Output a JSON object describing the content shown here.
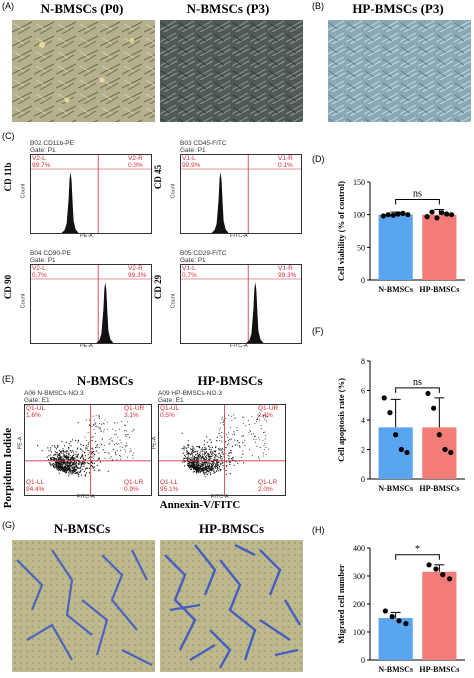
{
  "panels": {
    "A": {
      "label": "(A)",
      "images": [
        {
          "title": "N-BMSCs (P0)"
        },
        {
          "title": "N-BMSCs (P3)"
        }
      ]
    },
    "B": {
      "label": "(B)",
      "images": [
        {
          "title": "HP-BMSCs (P3)"
        }
      ]
    },
    "C": {
      "label": "(C)",
      "plots": [
        {
          "header": "B02 CD11b-PE",
          "gate": "Gate: P1",
          "ylabel": "CD 11b",
          "q_left": "V2-L",
          "q_left_val": "99.7%",
          "q_right": "V2-R",
          "q_right_val": "0.3%",
          "xaxis": "PE-A",
          "yaxis": "Count"
        },
        {
          "header": "B03 CD45-FITC",
          "gate": "Gate: P1",
          "ylabel": "CD 45",
          "q_left": "V1-L",
          "q_left_val": "99.9%",
          "q_right": "V1-R",
          "q_right_val": "0.1%",
          "xaxis": "FITC-A",
          "yaxis": "Count"
        },
        {
          "header": "B04 CD90-PE",
          "gate": "Gate: P1",
          "ylabel": "CD 90",
          "q_left": "V2-L",
          "q_left_val": "0.7%",
          "q_right": "V2-R",
          "q_right_val": "99.3%",
          "xaxis": "PE-A",
          "yaxis": "Count"
        },
        {
          "header": "B05 CD29-FITC",
          "gate": "Gate: P1",
          "ylabel": "CD 29",
          "q_left": "V1-L",
          "q_left_val": "0.7%",
          "q_right": "V1-R",
          "q_right_val": "99.3%",
          "xaxis": "FITC-A",
          "yaxis": "Count"
        }
      ]
    },
    "D": {
      "label": "(D)"
    },
    "E": {
      "label": "(E)",
      "titles": [
        "N-BMSCs",
        "HP-BMSCs"
      ],
      "ylabel": "Porpidum Iodide",
      "xlabel": "Annexin-V/FITC",
      "plots": [
        {
          "header": "A06 N-BMSCs-NO.3",
          "gate": "Gate: E1",
          "ul": "Q1-UL",
          "ul_val": "1.6%",
          "ur": "Q1-UR",
          "ur_val": "3.1%",
          "ll": "Q1-LL",
          "ll_val": "94.4%",
          "lr": "Q1-LR",
          "lr_val": "0.9%",
          "xaxis": "FITC-A",
          "yaxis": "PE-A"
        },
        {
          "header": "A09 HP-BMSCs-NO.3",
          "gate": "Gate: E1",
          "ul": "Q1-UL",
          "ul_val": "0.5%",
          "ur": "Q1-UR",
          "ur_val": "2.4%",
          "ll": "Q1-LL",
          "ll_val": "95.1%",
          "lr": "Q1-LR",
          "lr_val": "2.0%",
          "xaxis": "FITC-A",
          "yaxis": "PE-A"
        }
      ]
    },
    "F": {
      "label": "(F)"
    },
    "G": {
      "label": "(G)",
      "images": [
        {
          "title": "N-BMSCs"
        },
        {
          "title": "HP-BMSCs"
        }
      ]
    },
    "H": {
      "label": "(H)"
    }
  },
  "colors": {
    "blue": "#5aa5f0",
    "salmon": "#f47c78",
    "gate_red": "#d0303a",
    "stain": "#3a55c8"
  },
  "chart_data": [
    {
      "panel": "D",
      "type": "bar",
      "categories": [
        "N-BMSCs",
        "HP-BMSCs"
      ],
      "values": [
        100,
        100
      ],
      "errors": [
        4,
        8
      ],
      "points": [
        [
          98,
          100,
          99,
          101,
          102,
          100
        ],
        [
          97,
          104,
          95,
          103,
          101,
          100
        ]
      ],
      "ylabel": "Cell viability (% of control)",
      "yticks": [
        "0",
        "50",
        "100",
        "150"
      ],
      "ylim": [
        0,
        150
      ],
      "annotation": "ns"
    },
    {
      "panel": "F",
      "type": "bar",
      "categories": [
        "N-BMSCs",
        "HP-BMSCs"
      ],
      "values": [
        3.5,
        3.5
      ],
      "errors": [
        1.9,
        2.0
      ],
      "points": [
        [
          5.5,
          4.5,
          3.0,
          2.0,
          1.8
        ],
        [
          5.8,
          4.8,
          3.0,
          2.0,
          1.8
        ]
      ],
      "ylabel": "Cell apoptosis rate (%)",
      "yticks": [
        "0",
        "2",
        "4",
        "6",
        "8"
      ],
      "ylim": [
        0,
        8
      ],
      "annotation": "ns"
    },
    {
      "panel": "H",
      "type": "bar",
      "categories": [
        "N-BMSCs",
        "HP-BMSCs"
      ],
      "values": [
        150,
        315
      ],
      "errors": [
        20,
        25
      ],
      "points": [
        [
          175,
          155,
          140,
          130
        ],
        [
          340,
          325,
          305,
          290
        ]
      ],
      "ylabel": "Migrated cell number",
      "yticks": [
        "0",
        "100",
        "200",
        "300",
        "400"
      ],
      "ylim": [
        0,
        400
      ],
      "annotation": "*"
    }
  ]
}
